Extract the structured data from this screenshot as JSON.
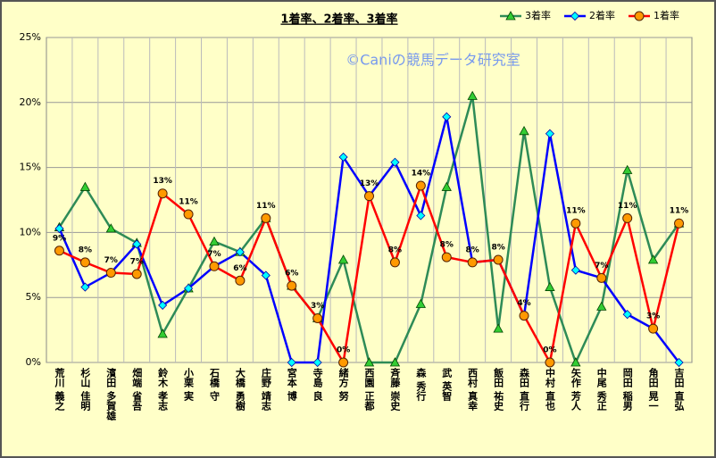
{
  "chart_data": {
    "type": "line",
    "title": "1着率、2着率、3着率",
    "watermark": "©Caniの競馬データ研究室",
    "categories": [
      "荒川 義之",
      "杉山 佳明",
      "濱田 多賀雄",
      "畑端 省吾",
      "鈴木 孝志",
      "小栗 実",
      "石橋 守",
      "大橋 勇樹",
      "庄野 靖志",
      "宮本 博",
      "寺島 良",
      "緒方 努",
      "西園 正都",
      "斉藤 崇史",
      "森 秀行",
      "武 英智",
      "西村 真幸",
      "飯田 祐史",
      "森田 直行",
      "中村 直也",
      "矢作 芳人",
      "中尾 秀正",
      "岡田 稲男",
      "角田 晃一",
      "吉田 直弘"
    ],
    "series": [
      {
        "name": "3着率",
        "color": "#2e8b57",
        "marker": "triangle",
        "values": [
          10.4,
          13.5,
          10.3,
          9.2,
          2.2,
          5.7,
          9.3,
          8.5,
          11.1,
          5.9,
          3.4,
          7.9,
          0,
          0,
          4.5,
          13.5,
          20.5,
          2.6,
          17.8,
          5.8,
          0,
          4.3,
          14.8,
          7.9,
          10.7
        ]
      },
      {
        "name": "2着率",
        "color": "#0000ff",
        "marker": "diamond",
        "values": [
          10.3,
          5.8,
          6.9,
          9.1,
          4.4,
          5.7,
          7.4,
          8.5,
          6.7,
          0,
          0,
          15.8,
          12.8,
          15.4,
          11.3,
          18.9,
          7.7,
          7.9,
          3.6,
          17.6,
          7.1,
          6.5,
          3.7,
          2.6,
          0
        ]
      },
      {
        "name": "1着率",
        "color": "#ff0000",
        "marker": "circle",
        "values": [
          8.6,
          7.7,
          6.9,
          6.8,
          13.0,
          11.4,
          7.4,
          6.3,
          11.1,
          5.9,
          3.4,
          0,
          12.8,
          7.7,
          13.6,
          8.1,
          7.7,
          7.9,
          3.6,
          0,
          10.7,
          6.5,
          11.1,
          2.6,
          10.7
        ],
        "value_labels": [
          "9%",
          "8%",
          "7%",
          "7%",
          "13%",
          "11%",
          "7%",
          "6%",
          "11%",
          "6%",
          "3%",
          "0%",
          "13%",
          "8%",
          "14%",
          "8%",
          "8%",
          "8%",
          "4%",
          "0%",
          "11%",
          "7%",
          "11%",
          "3%",
          "11%"
        ]
      }
    ],
    "ylim": [
      0,
      25
    ],
    "yticks": [
      {
        "value": 0,
        "label": "0%"
      },
      {
        "value": 5,
        "label": "5%"
      },
      {
        "value": 10,
        "label": "10%"
      },
      {
        "value": 15,
        "label": "15%"
      },
      {
        "value": 20,
        "label": "20%"
      },
      {
        "value": 25,
        "label": "25%"
      }
    ],
    "grid": true,
    "legend": "top-right"
  }
}
